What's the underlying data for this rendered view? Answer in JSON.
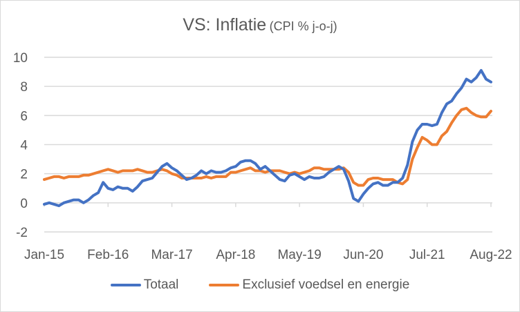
{
  "chart_data": {
    "type": "line",
    "title": "VS: Inflatie",
    "subtitle": "(CPI % j-o-j)",
    "xlabel": "",
    "ylabel": "",
    "ylim": [
      -2,
      10
    ],
    "yticks": [
      "10",
      "8",
      "6",
      "4",
      "2",
      "0",
      "-2"
    ],
    "ytick_values": [
      10,
      8,
      6,
      4,
      2,
      0,
      -2
    ],
    "xtick_labels": [
      "Jan-15",
      "Feb-16",
      "Mar-17",
      "Apr-18",
      "May-19",
      "Jun-20",
      "Jul-21",
      "Aug-22"
    ],
    "xtick_indices": [
      0,
      13,
      26,
      39,
      52,
      65,
      78,
      91
    ],
    "grid": true,
    "legend_position": "bottom",
    "x_start": "Jan-15",
    "x_end": "Aug-22",
    "series": [
      {
        "name": "Totaal",
        "color": "#4472c4",
        "values": [
          -0.1,
          0.0,
          -0.1,
          -0.2,
          0.0,
          0.1,
          0.2,
          0.2,
          0.0,
          0.2,
          0.5,
          0.7,
          1.4,
          1.0,
          0.9,
          1.1,
          1.0,
          1.0,
          0.8,
          1.1,
          1.5,
          1.6,
          1.7,
          2.1,
          2.5,
          2.7,
          2.4,
          2.2,
          1.9,
          1.6,
          1.7,
          1.9,
          2.2,
          2.0,
          2.2,
          2.1,
          2.1,
          2.2,
          2.4,
          2.5,
          2.8,
          2.9,
          2.9,
          2.7,
          2.3,
          2.5,
          2.2,
          1.9,
          1.6,
          1.5,
          1.9,
          2.0,
          1.8,
          1.6,
          1.8,
          1.7,
          1.7,
          1.8,
          2.1,
          2.3,
          2.5,
          2.3,
          1.5,
          0.3,
          0.1,
          0.6,
          1.0,
          1.3,
          1.4,
          1.2,
          1.2,
          1.4,
          1.4,
          1.7,
          2.6,
          4.2,
          5.0,
          5.4,
          5.4,
          5.3,
          5.4,
          6.2,
          6.8,
          7.0,
          7.5,
          7.9,
          8.5,
          8.3,
          8.6,
          9.1,
          8.5,
          8.3
        ]
      },
      {
        "name": "Exclusief voedsel en energie",
        "color": "#ed7d31",
        "values": [
          1.6,
          1.7,
          1.8,
          1.8,
          1.7,
          1.8,
          1.8,
          1.8,
          1.9,
          1.9,
          2.0,
          2.1,
          2.2,
          2.3,
          2.2,
          2.1,
          2.2,
          2.2,
          2.2,
          2.3,
          2.2,
          2.1,
          2.1,
          2.2,
          2.3,
          2.2,
          2.0,
          1.9,
          1.7,
          1.7,
          1.7,
          1.7,
          1.7,
          1.8,
          1.7,
          1.8,
          1.8,
          1.8,
          2.1,
          2.1,
          2.2,
          2.3,
          2.4,
          2.2,
          2.2,
          2.1,
          2.2,
          2.2,
          2.2,
          2.1,
          2.0,
          2.1,
          2.0,
          2.1,
          2.2,
          2.4,
          2.4,
          2.3,
          2.3,
          2.3,
          2.3,
          2.4,
          2.1,
          1.4,
          1.2,
          1.2,
          1.6,
          1.7,
          1.7,
          1.6,
          1.6,
          1.6,
          1.4,
          1.3,
          1.6,
          3.0,
          3.8,
          4.5,
          4.3,
          4.0,
          4.0,
          4.6,
          4.9,
          5.5,
          6.0,
          6.4,
          6.5,
          6.2,
          6.0,
          5.9,
          5.9,
          6.3
        ]
      }
    ]
  }
}
